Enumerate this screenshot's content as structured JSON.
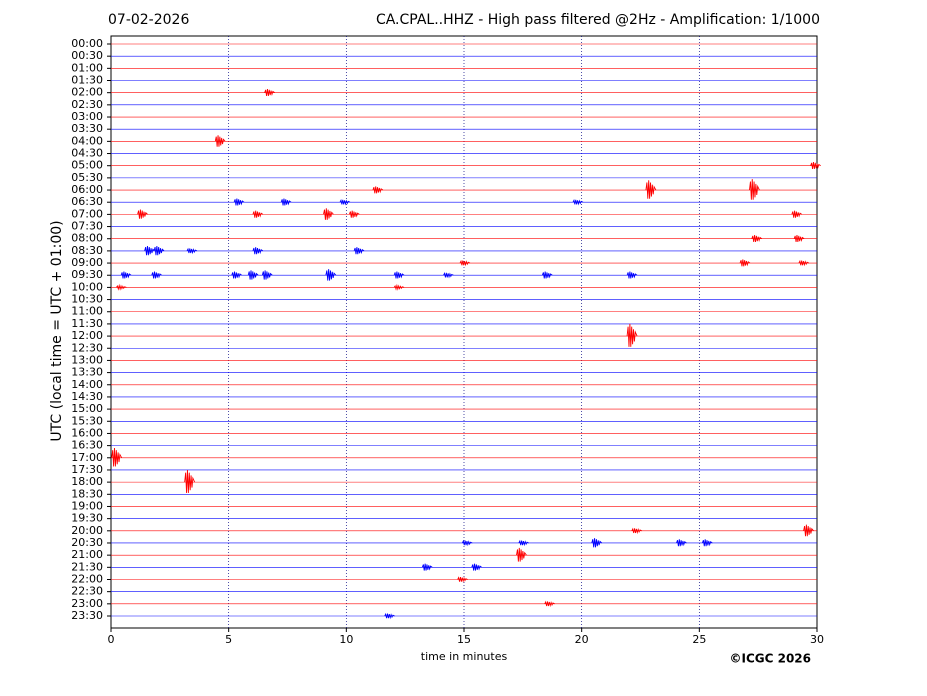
{
  "chart_data": {
    "type": "helicorder",
    "date": "07-02-2026",
    "title": "CA.CPAL..HHZ - High pass filtered @2Hz - Amplification: 1/1000",
    "xlabel": "time in minutes",
    "ylabel": "UTC (local time = UTC + 01:00)",
    "credit": "©ICGC 2026",
    "xlim": [
      0,
      30
    ],
    "xticks": [
      0,
      5,
      10,
      15,
      20,
      25,
      30
    ],
    "grid": true,
    "row_colors": [
      "#ff0000",
      "#0000ff"
    ],
    "rows": [
      "00:00",
      "00:30",
      "01:00",
      "01:30",
      "02:00",
      "02:30",
      "03:00",
      "03:30",
      "04:00",
      "04:30",
      "05:00",
      "05:30",
      "06:00",
      "06:30",
      "07:00",
      "07:30",
      "08:00",
      "08:30",
      "09:00",
      "09:30",
      "10:00",
      "10:30",
      "11:00",
      "11:30",
      "12:00",
      "12:30",
      "13:00",
      "13:30",
      "14:00",
      "14:30",
      "15:00",
      "15:30",
      "16:00",
      "16:30",
      "17:00",
      "17:30",
      "18:00",
      "18:30",
      "19:00",
      "19:30",
      "20:00",
      "20:30",
      "21:00",
      "21:30",
      "22:00",
      "22:30",
      "23:00",
      "23:30"
    ],
    "events": [
      {
        "row": 4,
        "minute": 6.7,
        "amplitude": 0.3
      },
      {
        "row": 8,
        "minute": 4.6,
        "amplitude": 0.5
      },
      {
        "row": 10,
        "minute": 29.9,
        "amplitude": 0.3
      },
      {
        "row": 12,
        "minute": 11.3,
        "amplitude": 0.3
      },
      {
        "row": 12,
        "minute": 22.9,
        "amplitude": 0.8
      },
      {
        "row": 12,
        "minute": 27.3,
        "amplitude": 0.9
      },
      {
        "row": 13,
        "minute": 5.4,
        "amplitude": 0.3
      },
      {
        "row": 13,
        "minute": 7.4,
        "amplitude": 0.3
      },
      {
        "row": 13,
        "minute": 9.9,
        "amplitude": 0.2
      },
      {
        "row": 13,
        "minute": 19.8,
        "amplitude": 0.2
      },
      {
        "row": 14,
        "minute": 1.3,
        "amplitude": 0.4
      },
      {
        "row": 14,
        "minute": 6.2,
        "amplitude": 0.3
      },
      {
        "row": 14,
        "minute": 9.2,
        "amplitude": 0.5
      },
      {
        "row": 14,
        "minute": 10.3,
        "amplitude": 0.3
      },
      {
        "row": 14,
        "minute": 29.1,
        "amplitude": 0.3
      },
      {
        "row": 16,
        "minute": 27.4,
        "amplitude": 0.3
      },
      {
        "row": 16,
        "minute": 29.2,
        "amplitude": 0.3
      },
      {
        "row": 17,
        "minute": 1.6,
        "amplitude": 0.4
      },
      {
        "row": 17,
        "minute": 2.0,
        "amplitude": 0.4
      },
      {
        "row": 17,
        "minute": 3.4,
        "amplitude": 0.2
      },
      {
        "row": 17,
        "minute": 6.2,
        "amplitude": 0.3
      },
      {
        "row": 17,
        "minute": 10.5,
        "amplitude": 0.3
      },
      {
        "row": 18,
        "minute": 15.0,
        "amplitude": 0.2
      },
      {
        "row": 18,
        "minute": 26.9,
        "amplitude": 0.3
      },
      {
        "row": 18,
        "minute": 29.4,
        "amplitude": 0.2
      },
      {
        "row": 19,
        "minute": 0.6,
        "amplitude": 0.3
      },
      {
        "row": 19,
        "minute": 1.9,
        "amplitude": 0.3
      },
      {
        "row": 19,
        "minute": 5.3,
        "amplitude": 0.3
      },
      {
        "row": 19,
        "minute": 6.0,
        "amplitude": 0.4
      },
      {
        "row": 19,
        "minute": 6.6,
        "amplitude": 0.4
      },
      {
        "row": 19,
        "minute": 9.3,
        "amplitude": 0.5
      },
      {
        "row": 19,
        "minute": 12.2,
        "amplitude": 0.3
      },
      {
        "row": 19,
        "minute": 14.3,
        "amplitude": 0.2
      },
      {
        "row": 19,
        "minute": 18.5,
        "amplitude": 0.3
      },
      {
        "row": 19,
        "minute": 22.1,
        "amplitude": 0.3
      },
      {
        "row": 20,
        "minute": 0.4,
        "amplitude": 0.15
      },
      {
        "row": 20,
        "minute": 12.2,
        "amplitude": 0.15
      },
      {
        "row": 24,
        "minute": 22.1,
        "amplitude": 1.0
      },
      {
        "row": 34,
        "minute": 0.2,
        "amplitude": 0.8
      },
      {
        "row": 36,
        "minute": 3.3,
        "amplitude": 1.0
      },
      {
        "row": 40,
        "minute": 22.3,
        "amplitude": 0.2
      },
      {
        "row": 40,
        "minute": 29.6,
        "amplitude": 0.5
      },
      {
        "row": 41,
        "minute": 15.1,
        "amplitude": 0.2
      },
      {
        "row": 41,
        "minute": 17.5,
        "amplitude": 0.2
      },
      {
        "row": 41,
        "minute": 20.6,
        "amplitude": 0.4
      },
      {
        "row": 41,
        "minute": 24.2,
        "amplitude": 0.3
      },
      {
        "row": 41,
        "minute": 25.3,
        "amplitude": 0.3
      },
      {
        "row": 42,
        "minute": 17.4,
        "amplitude": 0.6
      },
      {
        "row": 43,
        "minute": 13.4,
        "amplitude": 0.3
      },
      {
        "row": 43,
        "minute": 15.5,
        "amplitude": 0.3
      },
      {
        "row": 44,
        "minute": 14.9,
        "amplitude": 0.2
      },
      {
        "row": 46,
        "minute": 18.6,
        "amplitude": 0.2
      },
      {
        "row": 47,
        "minute": 11.8,
        "amplitude": 0.2
      }
    ]
  }
}
